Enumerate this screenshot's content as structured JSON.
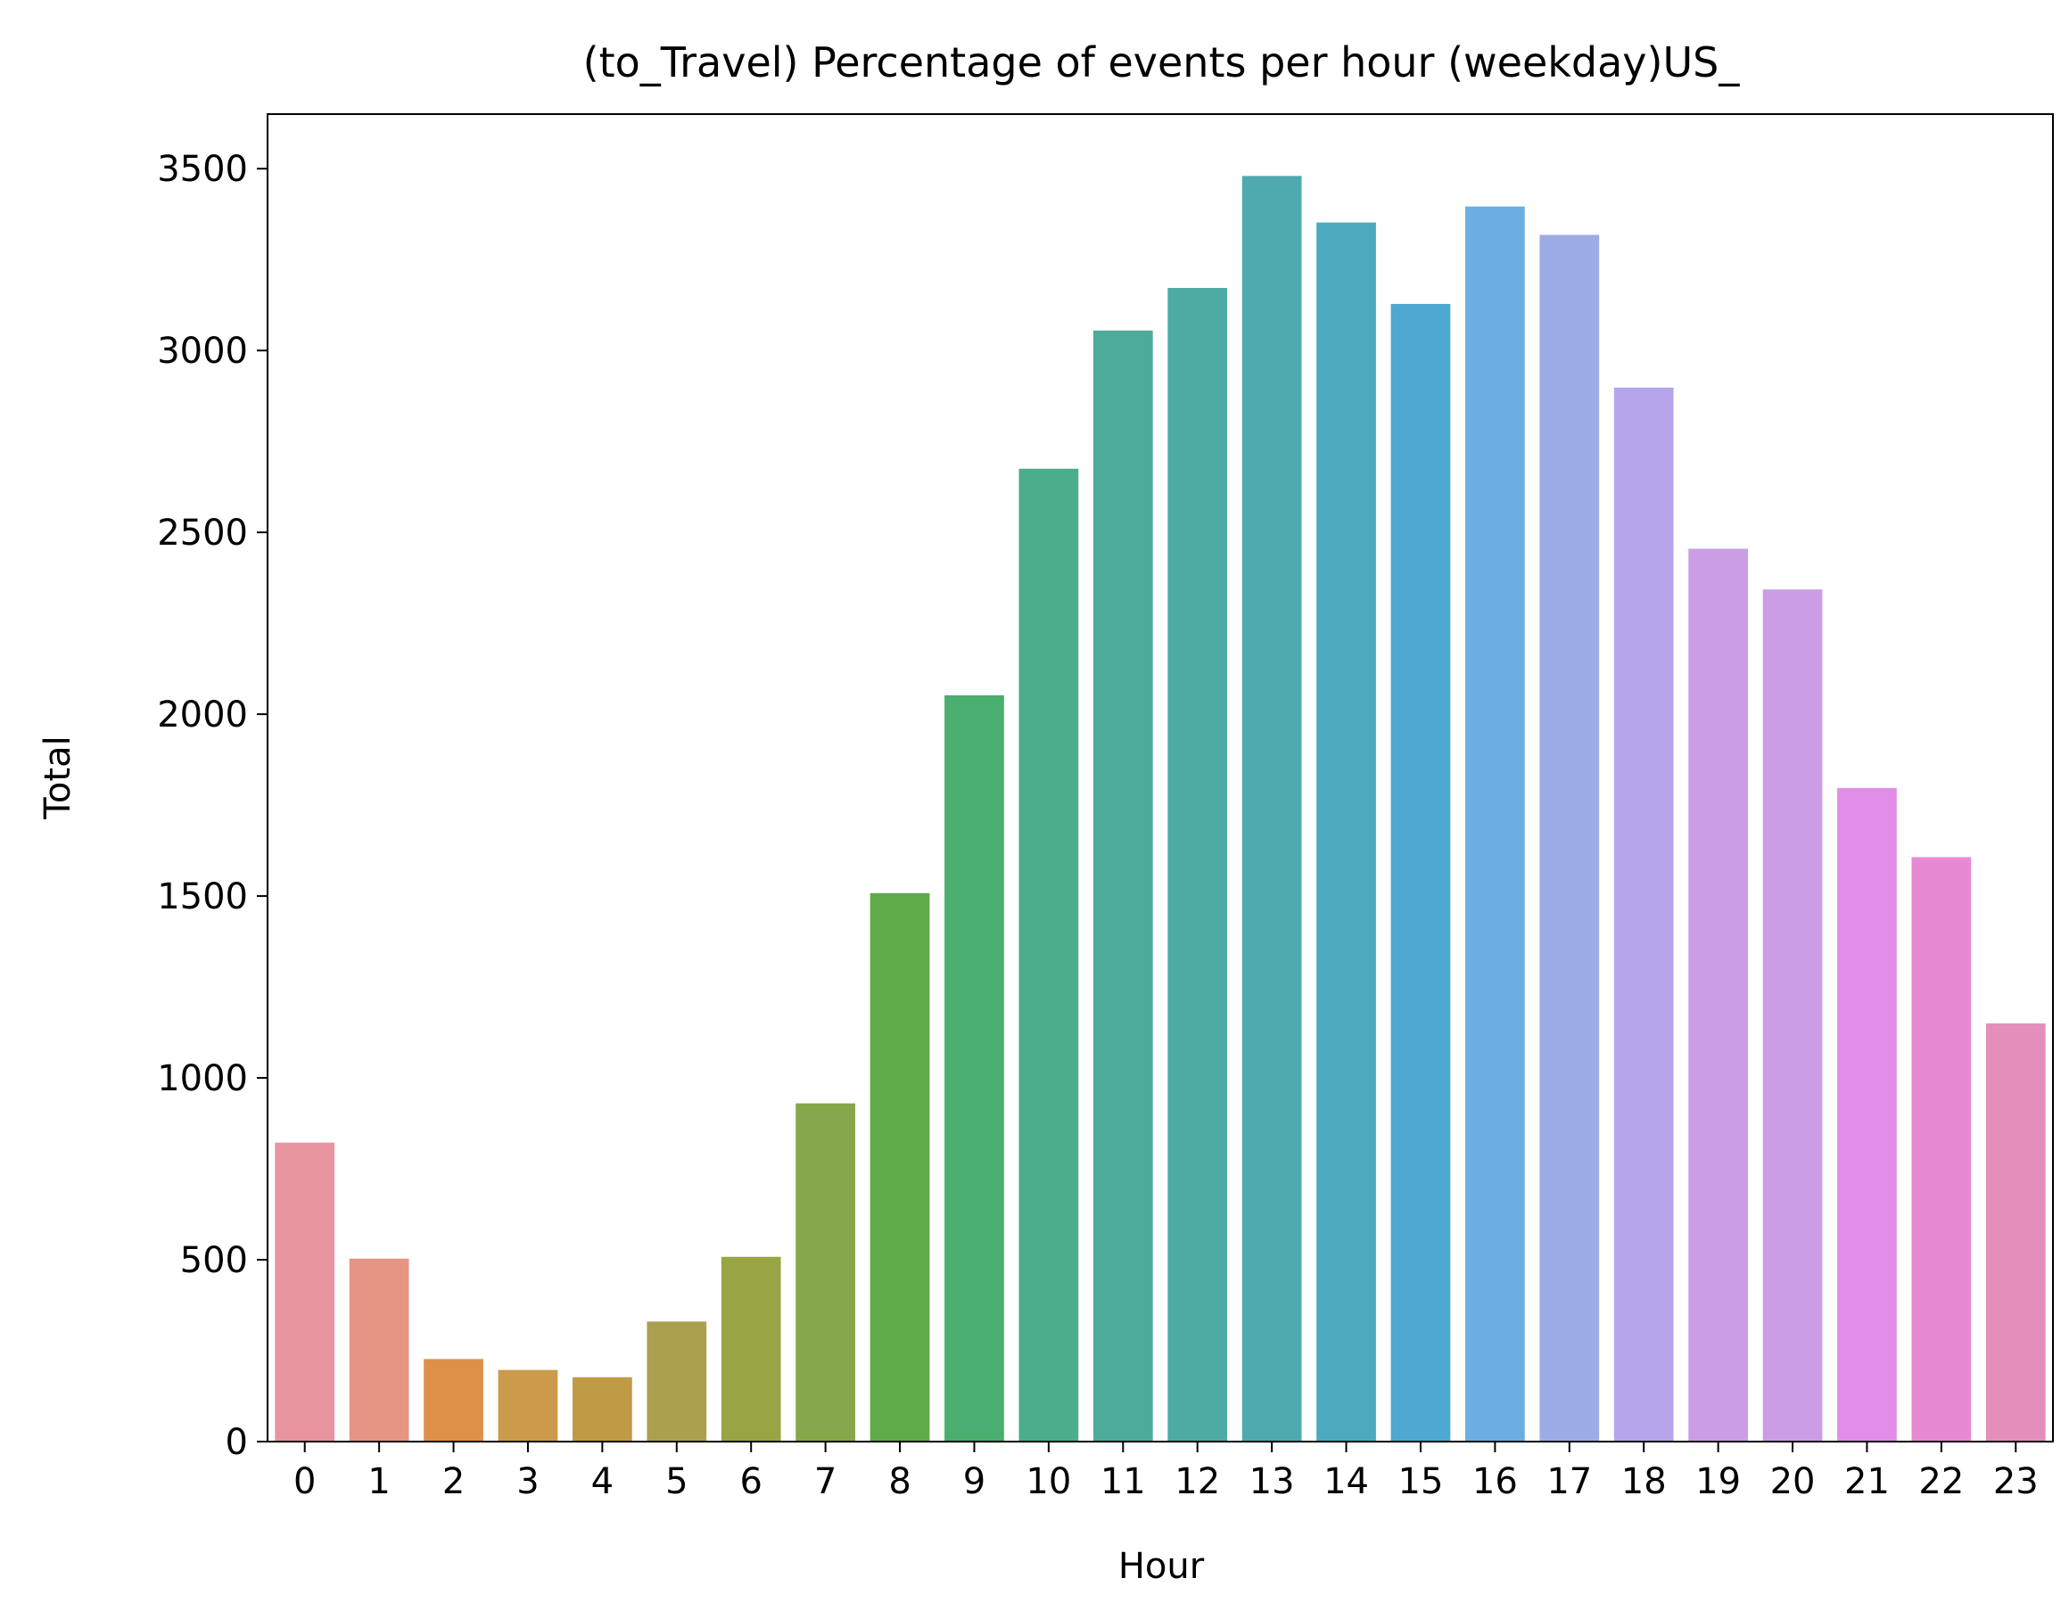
{
  "chart_data": {
    "type": "bar",
    "title": "(to_Travel) Percentage of events per hour (weekday)US_",
    "xlabel": "Hour",
    "ylabel": "Total",
    "categories": [
      "0",
      "1",
      "2",
      "3",
      "4",
      "5",
      "6",
      "7",
      "8",
      "9",
      "10",
      "11",
      "12",
      "13",
      "14",
      "15",
      "16",
      "17",
      "18",
      "19",
      "20",
      "21",
      "22",
      "23"
    ],
    "values": [
      822,
      503,
      227,
      197,
      177,
      330,
      508,
      930,
      1508,
      2052,
      2675,
      3055,
      3172,
      3480,
      3352,
      3128,
      3396,
      3318,
      2898,
      2455,
      2343,
      1797,
      1607,
      1150
    ],
    "colors": [
      "#e8959f",
      "#e69584",
      "#df9048",
      "#cb9b4b",
      "#c09b45",
      "#aba04d",
      "#99a445",
      "#86a84a",
      "#5fab4a",
      "#4aae70",
      "#4aad8c",
      "#4dac99",
      "#4eaba3",
      "#4eaaaf",
      "#4daabe",
      "#4ea8d1",
      "#6caee1",
      "#9eace6",
      "#b6a5ea",
      "#ca9de4",
      "#cb9de6",
      "#e08ee8",
      "#e68ad3",
      "#e48fbb",
      "#e993b4"
    ],
    "yticks": [
      0,
      500,
      1000,
      1500,
      2000,
      2500,
      3000,
      3500
    ],
    "ylim": [
      0,
      3650
    ],
    "grid": false,
    "legend": "none"
  }
}
